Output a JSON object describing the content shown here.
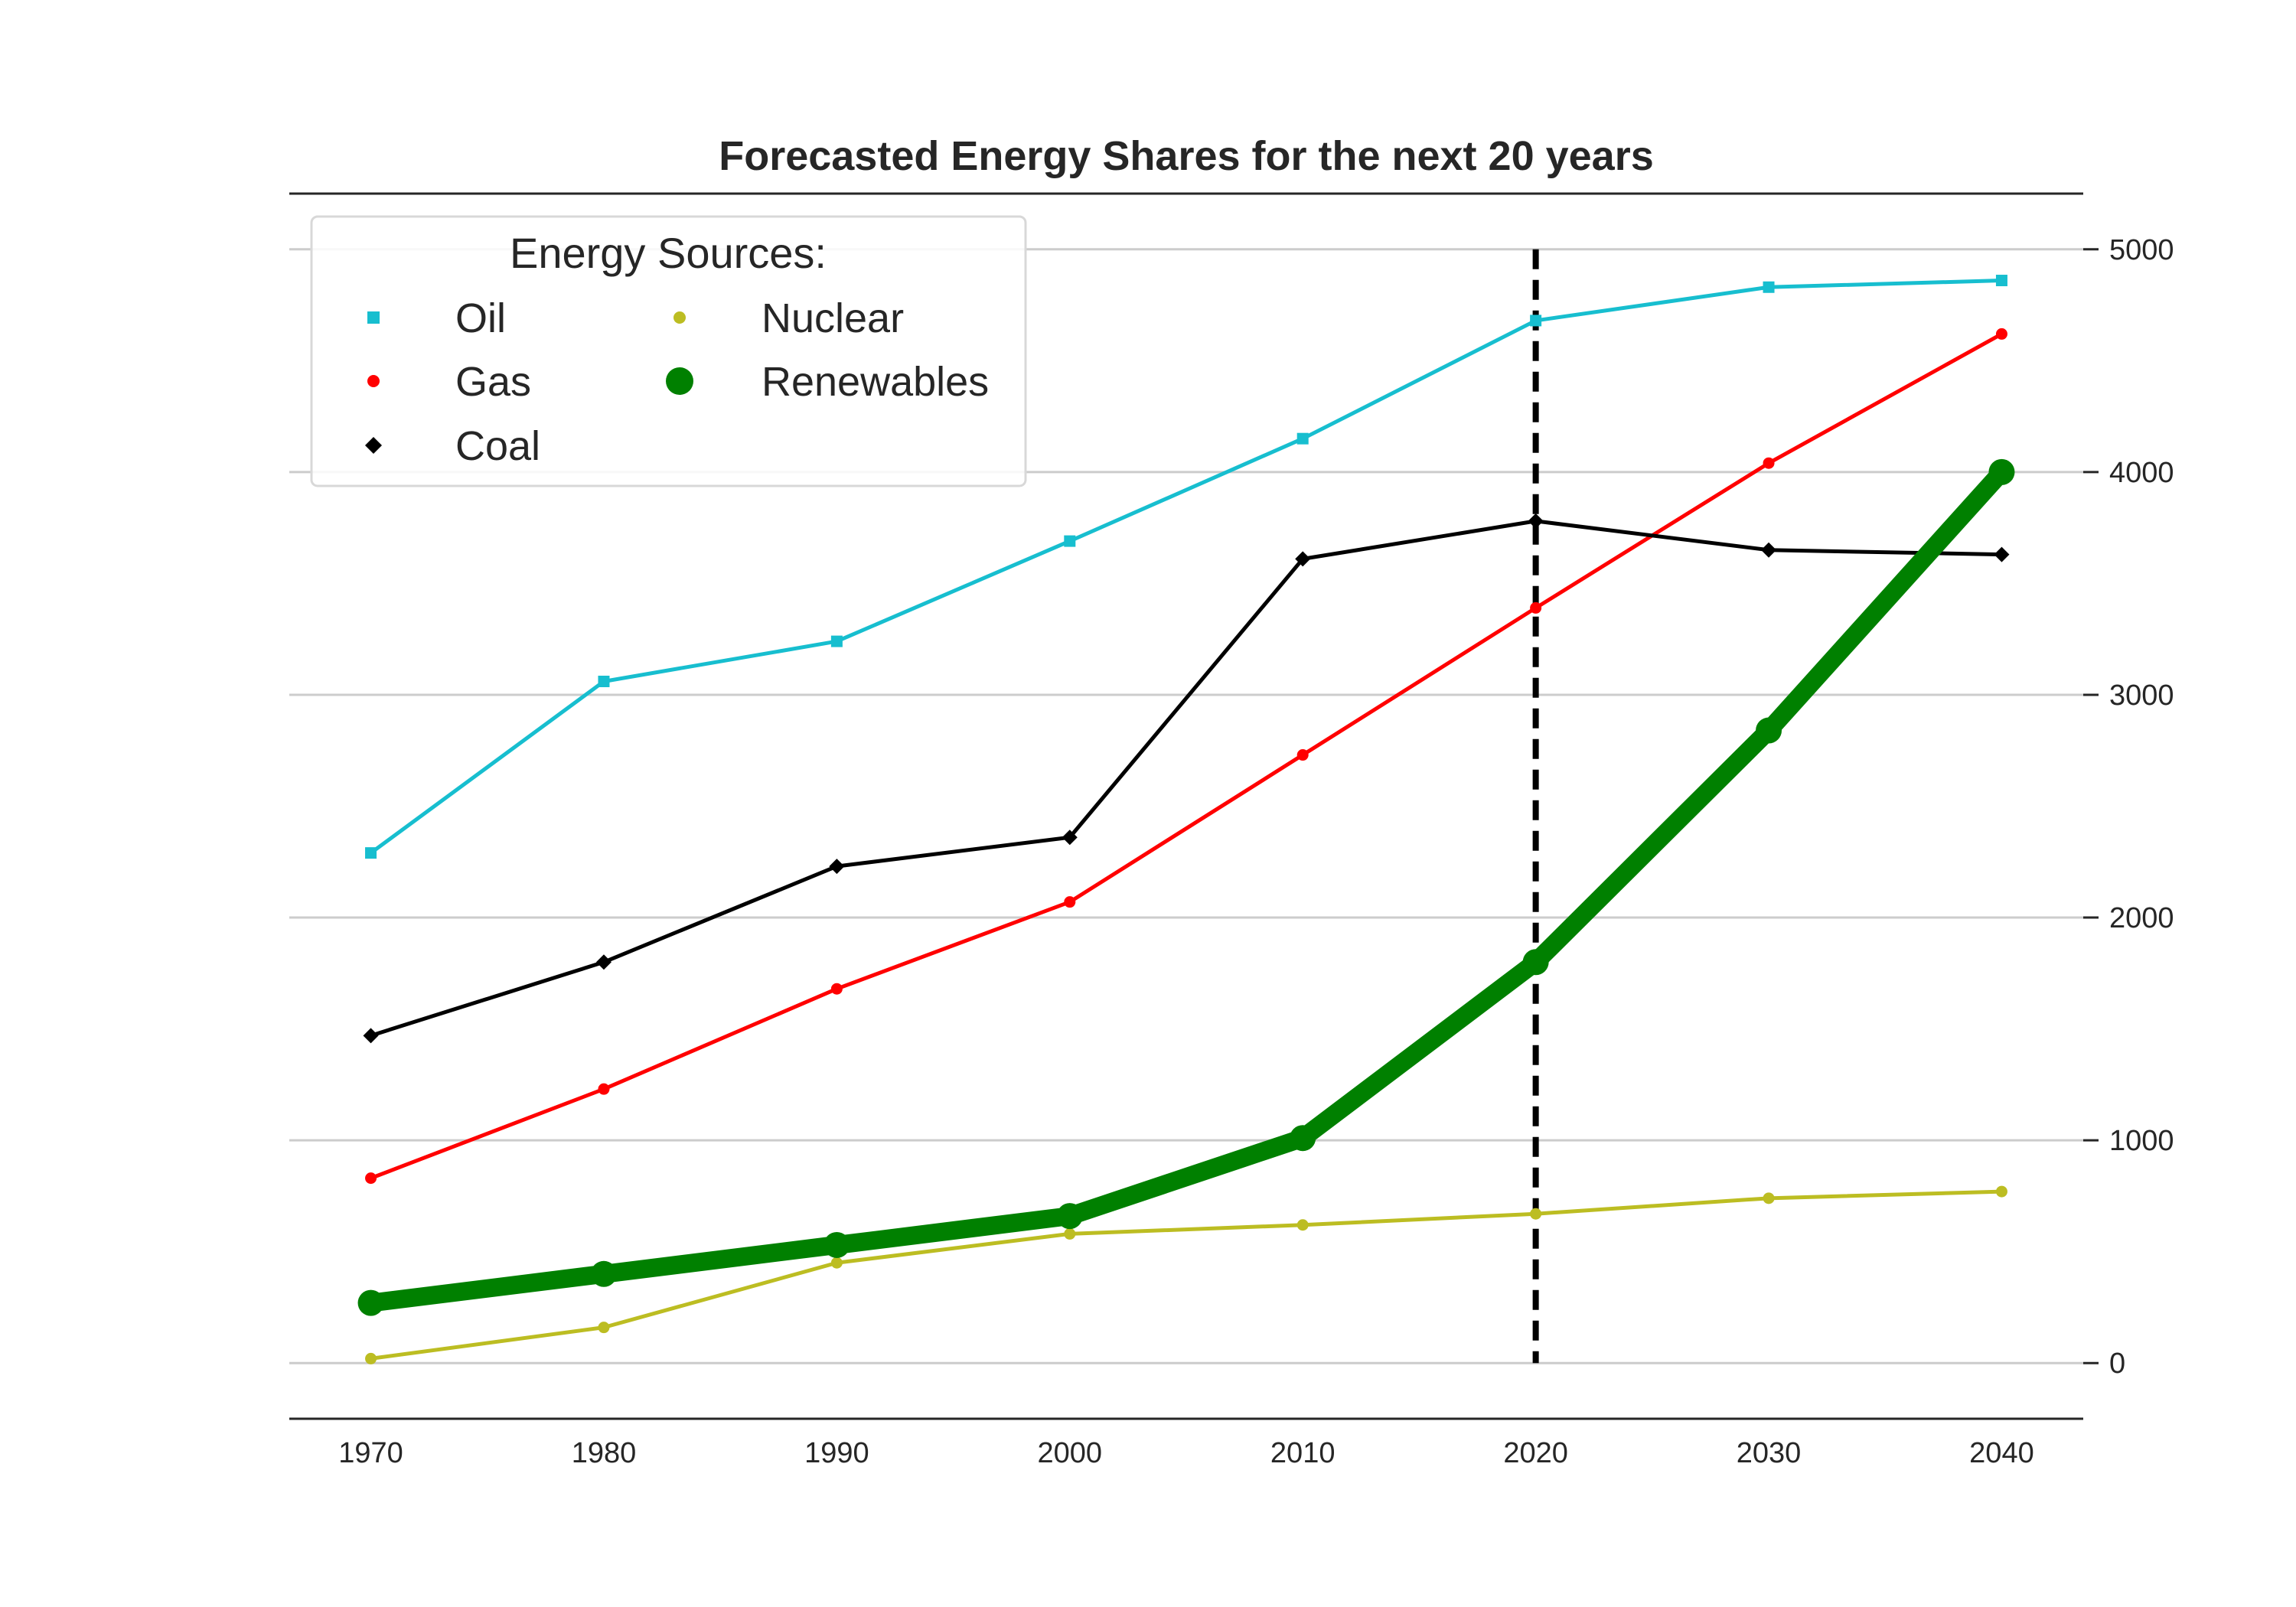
{
  "chart_data": {
    "type": "line",
    "title": "Forecasted Energy Shares for the next 20 years",
    "x": [
      1970,
      1980,
      1990,
      2000,
      2010,
      2020,
      2030,
      2040
    ],
    "xticks": [
      "1970",
      "1980",
      "1990",
      "2000",
      "2010",
      "2020",
      "2030",
      "2040"
    ],
    "yticks": [
      "0",
      "1000",
      "2000",
      "3000",
      "4000",
      "5000"
    ],
    "ylim": [
      -250,
      5250
    ],
    "xlim": [
      1966.5,
      2043.5
    ],
    "y_axis_side": "right",
    "grid": "horizontal",
    "vertical_marker": {
      "x": 2020,
      "style": "dashed",
      "color": "#000000"
    },
    "legend": {
      "title": "Energy Sources:",
      "placement": "upper-left",
      "columns": 2
    },
    "series": [
      {
        "name": "Oil",
        "color": "#17becf",
        "marker": "square",
        "emphasis": false,
        "values": [
          2290,
          3060,
          3240,
          3690,
          4150,
          4680,
          4830,
          4860
        ]
      },
      {
        "name": "Gas",
        "color": "#ff0000",
        "marker": "circle",
        "emphasis": false,
        "values": [
          830,
          1230,
          1680,
          2070,
          2730,
          3390,
          4040,
          4620
        ]
      },
      {
        "name": "Coal",
        "color": "#000000",
        "marker": "diamond",
        "emphasis": false,
        "values": [
          1470,
          1800,
          2230,
          2360,
          3610,
          3780,
          3650,
          3630
        ]
      },
      {
        "name": "Nuclear",
        "color": "#bcbd22",
        "marker": "circle",
        "emphasis": false,
        "values": [
          20,
          160,
          450,
          580,
          620,
          670,
          740,
          770
        ]
      },
      {
        "name": "Renewables",
        "color": "#008000",
        "marker": "circle",
        "emphasis": true,
        "values": [
          270,
          400,
          530,
          660,
          1010,
          1800,
          2840,
          4000
        ]
      }
    ]
  }
}
